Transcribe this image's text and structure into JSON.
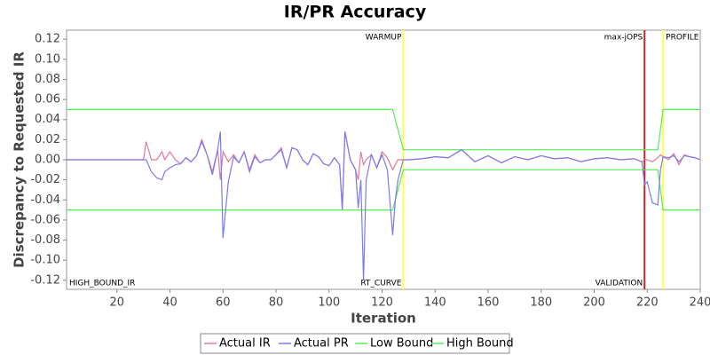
{
  "chart_data": {
    "type": "line",
    "title": "IR/PR Accuracy",
    "xlabel": "Iteration",
    "ylabel": "Discrepancy to Requested IR",
    "x": [
      1,
      30,
      31,
      33,
      35,
      37,
      38,
      40,
      42,
      44,
      46,
      48,
      50,
      52,
      54,
      56,
      58,
      59,
      60,
      62,
      64,
      66,
      68,
      70,
      72,
      74,
      76,
      78,
      80,
      82,
      84,
      86,
      88,
      90,
      92,
      94,
      96,
      98,
      100,
      102,
      104,
      105,
      106,
      108,
      110,
      111,
      112,
      113,
      114,
      116,
      118,
      120,
      122,
      124,
      125,
      126,
      128,
      130,
      135,
      140,
      145,
      150,
      155,
      160,
      165,
      170,
      175,
      180,
      185,
      190,
      195,
      200,
      205,
      210,
      215,
      218,
      219,
      220,
      222,
      224,
      225,
      226,
      228,
      230,
      232,
      234,
      236,
      238,
      240
    ],
    "series": [
      {
        "name": "Actual IR",
        "color": "#e07a96",
        "values": [
          0,
          0,
          0.018,
          0,
          0,
          0.008,
          0,
          0.008,
          0,
          -0.004,
          0.002,
          -0.002,
          0.004,
          0.02,
          0.005,
          -0.012,
          0.01,
          -0.02,
          0.008,
          -0.002,
          0.005,
          -0.003,
          0.008,
          -0.01,
          0.005,
          -0.003,
          0,
          0,
          0.005,
          0.012,
          -0.008,
          0.012,
          0.01,
          0,
          -0.005,
          0.006,
          0.003,
          -0.004,
          -0.006,
          0.002,
          -0.005,
          -0.05,
          0.028,
          0,
          -0.01,
          -0.02,
          0.008,
          -0.005,
          0,
          0.005,
          -0.008,
          0.008,
          0.002,
          -0.01,
          -0.005,
          0,
          0,
          0,
          0.001,
          0.003,
          0.002,
          0.01,
          -0.002,
          0.004,
          -0.003,
          0.003,
          0,
          0.004,
          0.001,
          0.002,
          -0.002,
          0.001,
          0.002,
          0,
          0.001,
          -0.002,
          0,
          0,
          -0.002,
          0.002,
          0.005,
          0.003,
          0,
          0.006,
          -0.005,
          0.005,
          0.003,
          0.002,
          0
        ]
      },
      {
        "name": "Actual PR",
        "color": "#7b7bf0",
        "values": [
          0,
          0,
          0,
          -0.012,
          -0.018,
          -0.02,
          -0.012,
          -0.008,
          -0.005,
          -0.004,
          0.002,
          -0.002,
          0.004,
          0.018,
          0.005,
          -0.015,
          0.01,
          0.028,
          -0.078,
          -0.022,
          0.003,
          -0.003,
          0.008,
          -0.012,
          0.003,
          -0.003,
          0,
          0,
          0.005,
          0.01,
          -0.008,
          0.012,
          0.01,
          0,
          -0.005,
          0.006,
          0.003,
          -0.004,
          -0.006,
          0.002,
          -0.005,
          -0.05,
          0.028,
          0,
          -0.01,
          -0.048,
          -0.02,
          -0.12,
          -0.02,
          0.005,
          -0.008,
          0.005,
          -0.01,
          -0.075,
          -0.04,
          -0.02,
          0,
          0,
          0.001,
          0.003,
          0.002,
          0.01,
          -0.002,
          0.004,
          -0.003,
          0.003,
          0,
          0.004,
          0.001,
          0.002,
          -0.002,
          0.001,
          0.002,
          0,
          0.001,
          -0.002,
          -0.025,
          -0.022,
          -0.043,
          -0.045,
          -0.01,
          0.003,
          0.002,
          0.004,
          -0.002,
          0.004,
          0.003,
          0.002,
          0
        ]
      },
      {
        "name": "Low Bound",
        "color": "#55ee55",
        "values": [
          -0.05,
          -0.05,
          -0.05,
          -0.05,
          -0.05,
          -0.05,
          -0.05,
          -0.05,
          -0.05,
          -0.05,
          -0.05,
          -0.05,
          -0.05,
          -0.05,
          -0.05,
          -0.05,
          -0.05,
          -0.05,
          -0.05,
          -0.05,
          -0.05,
          -0.05,
          -0.05,
          -0.05,
          -0.05,
          -0.05,
          -0.05,
          -0.05,
          -0.05,
          -0.05,
          -0.05,
          -0.05,
          -0.05,
          -0.05,
          -0.05,
          -0.05,
          -0.05,
          -0.05,
          -0.05,
          -0.05,
          -0.05,
          -0.05,
          -0.05,
          -0.05,
          -0.05,
          -0.05,
          -0.05,
          -0.05,
          -0.05,
          -0.05,
          -0.05,
          -0.05,
          -0.05,
          -0.05,
          -0.04,
          -0.03,
          -0.01,
          -0.01,
          -0.01,
          -0.01,
          -0.01,
          -0.01,
          -0.01,
          -0.01,
          -0.01,
          -0.01,
          -0.01,
          -0.01,
          -0.01,
          -0.01,
          -0.01,
          -0.01,
          -0.01,
          -0.01,
          -0.01,
          -0.01,
          -0.01,
          -0.01,
          -0.01,
          -0.01,
          -0.03,
          -0.05,
          -0.05,
          -0.05,
          -0.05,
          -0.05,
          -0.05,
          -0.05,
          -0.05
        ]
      },
      {
        "name": "High Bound",
        "color": "#55ee55",
        "values": [
          0.05,
          0.05,
          0.05,
          0.05,
          0.05,
          0.05,
          0.05,
          0.05,
          0.05,
          0.05,
          0.05,
          0.05,
          0.05,
          0.05,
          0.05,
          0.05,
          0.05,
          0.05,
          0.05,
          0.05,
          0.05,
          0.05,
          0.05,
          0.05,
          0.05,
          0.05,
          0.05,
          0.05,
          0.05,
          0.05,
          0.05,
          0.05,
          0.05,
          0.05,
          0.05,
          0.05,
          0.05,
          0.05,
          0.05,
          0.05,
          0.05,
          0.05,
          0.05,
          0.05,
          0.05,
          0.05,
          0.05,
          0.05,
          0.05,
          0.05,
          0.05,
          0.05,
          0.05,
          0.05,
          0.04,
          0.03,
          0.01,
          0.01,
          0.01,
          0.01,
          0.01,
          0.01,
          0.01,
          0.01,
          0.01,
          0.01,
          0.01,
          0.01,
          0.01,
          0.01,
          0.01,
          0.01,
          0.01,
          0.01,
          0.01,
          0.01,
          0.01,
          0.01,
          0.01,
          0.01,
          0.03,
          0.05,
          0.05,
          0.05,
          0.05,
          0.05,
          0.05,
          0.05,
          0.05
        ]
      }
    ],
    "xlim": [
      1,
      240
    ],
    "xticks": [
      20,
      40,
      60,
      80,
      100,
      120,
      140,
      160,
      180,
      200,
      220,
      240
    ],
    "ylim": [
      -0.129,
      0.129
    ],
    "yticks": [
      -0.12,
      {
        "value": -0.1,
        "label": "-0.10"
      },
      -0.08,
      -0.06,
      -0.04,
      -0.02,
      {
        "value": 0,
        "label": "0.00"
      },
      0.02,
      0.04,
      0.06,
      0.08,
      {
        "value": 0.1,
        "label": "0.10"
      },
      0.12
    ],
    "marker_lines": [
      {
        "x": 128,
        "color": "#ffff55"
      },
      {
        "x": 219,
        "color": "#cc2222"
      },
      {
        "x": 226,
        "color": "#ffff55"
      }
    ],
    "marker_labels": [
      {
        "label": "WARMUP",
        "x": 128,
        "position": "top-left"
      },
      {
        "label": "RT_CURVE",
        "x": 128,
        "position": "bottom-left"
      },
      {
        "label": "max-jOPS",
        "x": 219,
        "position": "top-left"
      },
      {
        "label": "VALIDATION",
        "x": 219,
        "position": "bottom-left"
      },
      {
        "label": "PROFILE",
        "x": 226,
        "position": "top-right"
      },
      {
        "label": "HIGH_BOUND_IR",
        "x": 1,
        "position": "bottom-right"
      }
    ],
    "legend": "bottom"
  }
}
